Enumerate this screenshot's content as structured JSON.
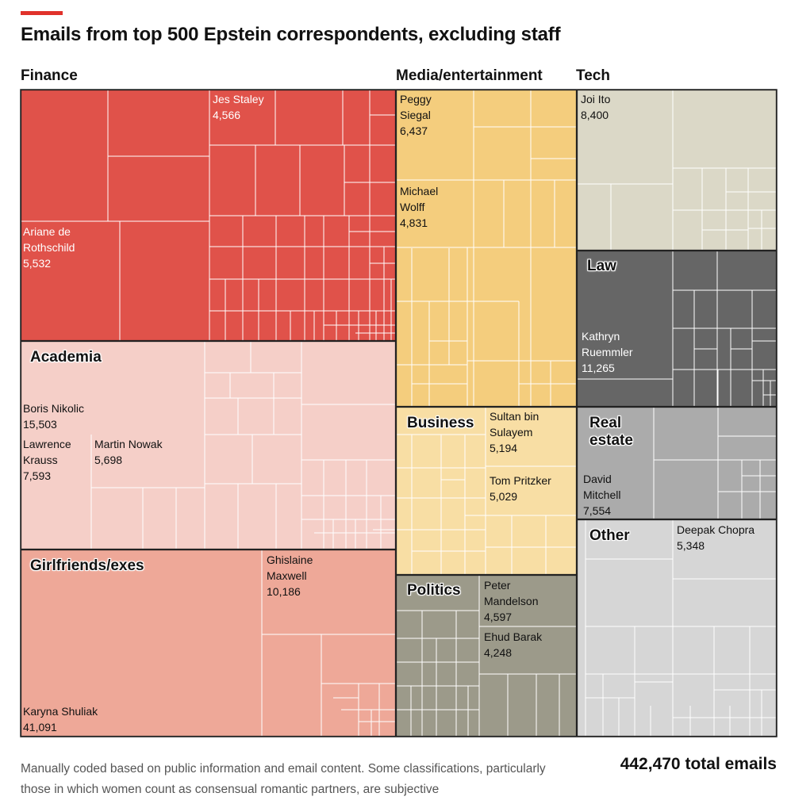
{
  "accent_color": "#e0322b",
  "title": "Emails from top 500 Epstein correspondents, excluding staff",
  "footnote": "Manually coded based on public information and email content. Some classifications, particularly those in which women count as consensual romantic partners, are subjective",
  "total_label": "442,470 total emails",
  "chart_data": {
    "type": "treemap",
    "title": "Emails from top 500 Epstein correspondents, excluding staff",
    "total": 442470,
    "categories": [
      {
        "name": "Finance",
        "color": "#e0524a",
        "labels_light": true,
        "labeled": [
          {
            "name": "Ariane de Rothschild",
            "display": "Ariane de\nRothschild",
            "value": 5532,
            "value_label": "5,532"
          },
          {
            "name": "Jes Staley",
            "display": "Jes Staley",
            "value": 4566,
            "value_label": "4,566"
          }
        ]
      },
      {
        "name": "Academia",
        "color": "#f5cfc8",
        "labels_light": false,
        "labeled": [
          {
            "name": "Boris Nikolic",
            "display": "Boris Nikolic",
            "value": 15503,
            "value_label": "15,503"
          },
          {
            "name": "Lawrence Krauss",
            "display": "Lawrence\nKrauss",
            "value": 7593,
            "value_label": "7,593"
          },
          {
            "name": "Martin Nowak",
            "display": "Martin Nowak",
            "value": 5698,
            "value_label": "5,698"
          }
        ]
      },
      {
        "name": "Girlfriends/exes",
        "color": "#eea898",
        "labels_light": false,
        "labeled": [
          {
            "name": "Karyna Shuliak",
            "display": "Karyna Shuliak",
            "value": 41091,
            "value_label": "41,091"
          },
          {
            "name": "Ghislaine Maxwell",
            "display": "Ghislaine\nMaxwell",
            "value": 10186,
            "value_label": "10,186"
          }
        ]
      },
      {
        "name": "Media/entertainment",
        "color": "#f4cd7d",
        "labels_light": false,
        "labeled": [
          {
            "name": "Peggy Siegal",
            "display": "Peggy\nSiegal",
            "value": 6437,
            "value_label": "6,437"
          },
          {
            "name": "Michael Wolff",
            "display": "Michael\nWolff",
            "value": 4831,
            "value_label": "4,831"
          }
        ]
      },
      {
        "name": "Business",
        "color": "#f8dea4",
        "labels_light": false,
        "labeled": [
          {
            "name": "Sultan bin Sulayem",
            "display": "Sultan bin\nSulayem",
            "value": 5194,
            "value_label": "5,194"
          },
          {
            "name": "Tom Pritzker",
            "display": "Tom Pritzker",
            "value": 5029,
            "value_label": "5,029"
          }
        ]
      },
      {
        "name": "Politics",
        "color": "#9c9a8a",
        "labels_light": false,
        "labeled": [
          {
            "name": "Peter Mandelson",
            "display": "Peter\nMandelson",
            "value": 4597,
            "value_label": "4,597"
          },
          {
            "name": "Ehud Barak",
            "display": "Ehud Barak",
            "value": 4248,
            "value_label": "4,248"
          }
        ]
      },
      {
        "name": "Tech",
        "color": "#dbd8c7",
        "labels_light": false,
        "labeled": [
          {
            "name": "Joi Ito",
            "display": "Joi Ito",
            "value": 8400,
            "value_label": "8,400"
          }
        ]
      },
      {
        "name": "Law",
        "color": "#666666",
        "labels_light": true,
        "labeled": [
          {
            "name": "Kathryn Ruemmler",
            "display": "Kathryn\nRuemmler",
            "value": 11265,
            "value_label": "11,265"
          }
        ]
      },
      {
        "name": "Real estate",
        "display": "Real\nestate",
        "color": "#ababab",
        "labels_light": false,
        "labeled": [
          {
            "name": "David Mitchell",
            "display": "David\nMitchell",
            "value": 7554,
            "value_label": "7,554"
          }
        ]
      },
      {
        "name": "Other",
        "color": "#d6d6d6",
        "labels_light": false,
        "labeled": [
          {
            "name": "Deepak Chopra",
            "display": "Deepak Chopra",
            "value": 5348,
            "value_label": "5,348"
          }
        ]
      }
    ]
  }
}
